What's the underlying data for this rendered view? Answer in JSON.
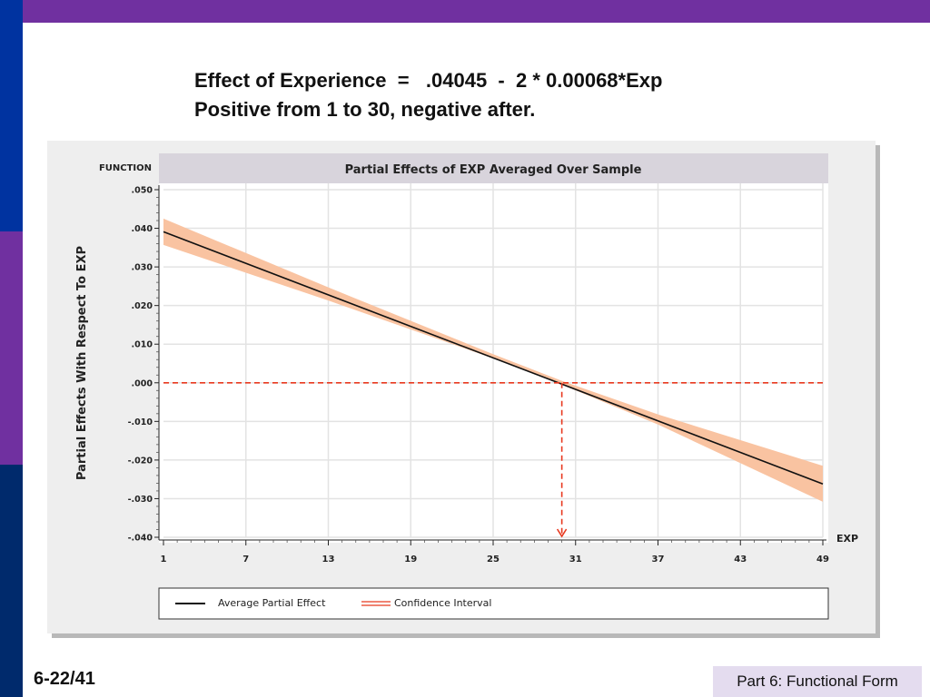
{
  "slide": {
    "heading_line1": "Effect of Experience  =   .04045  -  2 * 0.00068*Exp",
    "heading_line2": "Positive from 1 to 30, negative after.",
    "slide_number": "6-22/41",
    "footer_label": "Part 6: Functional Form"
  },
  "colors": {
    "accent_purple": "#7030a0",
    "accent_blue": "#0033a0",
    "band_fill": "#f9c3a1",
    "reference_red": "#e8391f"
  },
  "chart_data": {
    "type": "line",
    "title": "Partial Effects of EXP Averaged Over Sample",
    "function_label": "FUNCTION",
    "xlabel": "EXP",
    "ylabel": "Partial Effects With Respect To EXP",
    "xlim": [
      1,
      49
    ],
    "ylim": [
      -0.04,
      0.05
    ],
    "x_ticks": [
      1,
      7,
      13,
      19,
      25,
      31,
      37,
      43,
      49
    ],
    "x_tick_labels": [
      "1",
      "7",
      "13",
      "19",
      "25",
      "31",
      "37",
      "43",
      "49"
    ],
    "y_ticks": [
      0.05,
      0.04,
      0.03,
      0.02,
      0.01,
      0.0,
      -0.01,
      -0.02,
      -0.03,
      -0.04
    ],
    "y_tick_labels": [
      ".050",
      ".040",
      ".030",
      ".020",
      ".010",
      ".000",
      "-.010",
      "-.020",
      "-.030",
      "-.040"
    ],
    "grid": true,
    "series": [
      {
        "name": "Average Partial Effect",
        "x": [
          1,
          49
        ],
        "y": [
          0.03909,
          -0.02619
        ]
      }
    ],
    "confidence_band": {
      "name": "Confidence Interval",
      "x": [
        1,
        13,
        25,
        30,
        37,
        49
      ],
      "upper": [
        0.0425,
        0.0247,
        0.0074,
        0.0005,
        -0.0082,
        -0.0215
      ],
      "lower": [
        0.0357,
        0.0213,
        0.0063,
        -0.0005,
        -0.0108,
        -0.0308
      ]
    },
    "reference_lines": {
      "zero_y": 0.0,
      "crossing_x": 30.0
    },
    "legend": {
      "placement": "bottom",
      "items": [
        "Average Partial Effect",
        "Confidence Interval"
      ]
    }
  }
}
